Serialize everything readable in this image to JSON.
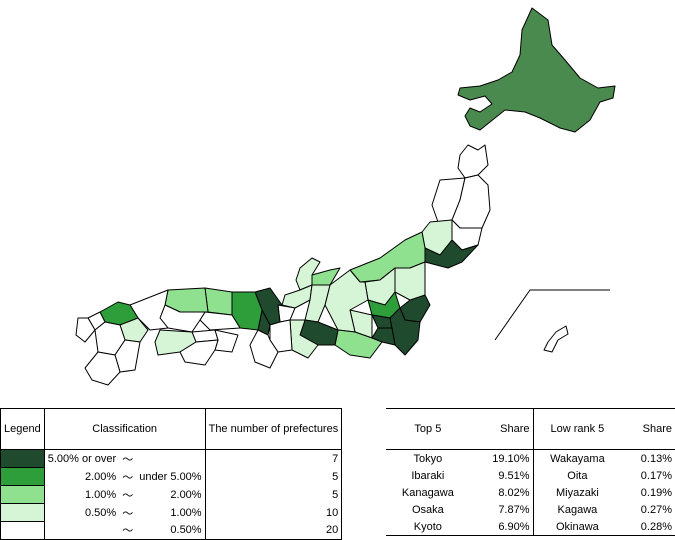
{
  "map": {
    "colors": {
      "tier1": "#1f4a2e",
      "tier2": "#2e9e3a",
      "tier3": "#8fe08f",
      "tier4": "#d6f5d6",
      "tier5": "#ffffff",
      "hokkaido": "#4a8a4f"
    }
  },
  "legend": {
    "header_legend": "Legend",
    "header_classification": "Classification",
    "header_count": "The number of prefectures",
    "rows": [
      {
        "from": "5.00% or over",
        "tilde": "〜",
        "to": "",
        "count": "7",
        "color": "#1f4a2e"
      },
      {
        "from": "2.00%",
        "tilde": "〜",
        "to": "under 5.00%",
        "count": "5",
        "color": "#2e9e3a"
      },
      {
        "from": "1.00%",
        "tilde": "〜",
        "to": "2.00%",
        "count": "5",
        "color": "#8fe08f"
      },
      {
        "from": "0.50%",
        "tilde": "〜",
        "to": "1.00%",
        "count": "10",
        "color": "#d6f5d6"
      },
      {
        "from": "",
        "tilde": "〜",
        "to": "0.50%",
        "count": "20",
        "color": "#ffffff"
      }
    ]
  },
  "ranking": {
    "header_top": "Top 5",
    "header_share": "Share",
    "header_low": "Low rank 5",
    "header_share2": "Share",
    "rows": [
      {
        "top": "Tokyo",
        "top_share": "19.10%",
        "low": "Wakayama",
        "low_share": "0.13%"
      },
      {
        "top": "Ibaraki",
        "top_share": "9.51%",
        "low": "Oita",
        "low_share": "0.17%"
      },
      {
        "top": "Kanagawa",
        "top_share": "8.02%",
        "low": "Miyazaki",
        "low_share": "0.19%"
      },
      {
        "top": "Osaka",
        "top_share": "7.87%",
        "low": "Kagawa",
        "low_share": "0.27%"
      },
      {
        "top": "Kyoto",
        "top_share": "6.90%",
        "low": "Okinawa",
        "low_share": "0.28%"
      }
    ]
  }
}
